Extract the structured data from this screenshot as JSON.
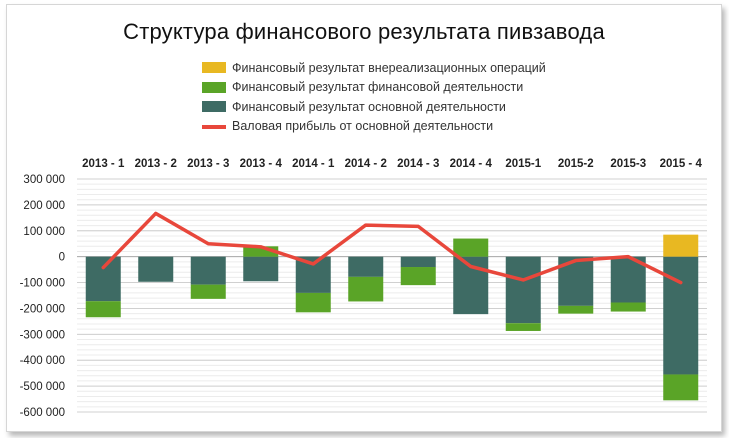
{
  "chart_data": {
    "type": "bar",
    "title": "Структура финансового результата пивзавода",
    "categories": [
      "2013 - 1",
      "2013 - 2",
      "2013 - 3",
      "2013 - 4",
      "2014 - 1",
      "2014 - 2",
      "2014 - 3",
      "2014 - 4",
      "2015-1",
      "2015-2",
      "2015-3",
      "2015 - 4"
    ],
    "stacked": true,
    "x_axis_position": "top",
    "ylim": [
      -600000,
      300000
    ],
    "y_ticks": [
      300000,
      200000,
      100000,
      0,
      -100000,
      -200000,
      -300000,
      -400000,
      -500000,
      -600000
    ],
    "y_tick_labels": [
      "300 000",
      "200 000",
      "100 000",
      "0",
      "-100 000",
      "-200 000",
      "-300 000",
      "-400 000",
      "-500 000",
      "-600 000"
    ],
    "grid": true,
    "legend_position": "top",
    "series": [
      {
        "name": "Финансовый результат внереализационных операций",
        "kind": "bar",
        "color": "#e8b822",
        "values": [
          0,
          0,
          0,
          0,
          0,
          0,
          0,
          0,
          0,
          0,
          0,
          85000
        ]
      },
      {
        "name": "Финансовый результат финансовой деятельности",
        "kind": "bar",
        "color": "#5aa427",
        "values": [
          -62000,
          0,
          -55000,
          40000,
          -75000,
          -95000,
          -70000,
          70000,
          -30000,
          -30000,
          -35000,
          -100000
        ]
      },
      {
        "name": "Финансовый результат основной деятельности",
        "kind": "bar",
        "color": "#3e6b64",
        "values": [
          -172000,
          -97000,
          -108000,
          -95000,
          -140000,
          -78000,
          -40000,
          -222000,
          -257000,
          -190000,
          -177000,
          -455000
        ]
      },
      {
        "name": "Валовая прибыль от основной деятельности",
        "kind": "line",
        "color": "#e8473b",
        "values": [
          -42000,
          167000,
          50000,
          38000,
          -28000,
          122000,
          117000,
          -38000,
          -90000,
          -15000,
          0,
          -100000
        ]
      }
    ]
  }
}
